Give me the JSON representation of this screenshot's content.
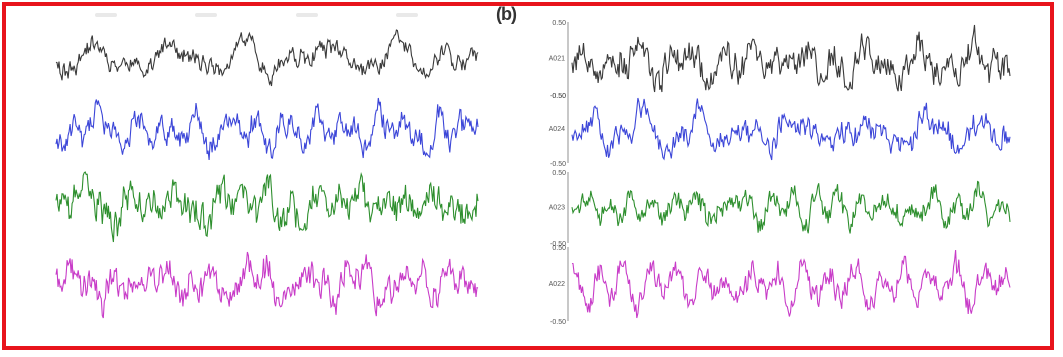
{
  "panel_label": "(b)",
  "chart_data": [
    {
      "type": "line",
      "panel": "left",
      "title": "",
      "axes": "none",
      "grid": false,
      "series": [
        {
          "color": "#3a3a3a",
          "seed": 11,
          "smooth": 0.55,
          "amp": 1.0
        },
        {
          "color": "#3c46d8",
          "seed": 23,
          "smooth": 0.5,
          "amp": 1.0
        },
        {
          "color": "#2e8f2e",
          "seed": 37,
          "smooth": 0.45,
          "amp": 1.0
        },
        {
          "color": "#c83cc8",
          "seed": 41,
          "smooth": 0.35,
          "amp": 1.0
        }
      ]
    },
    {
      "type": "line",
      "panel": "right",
      "title": "",
      "grid": false,
      "ylim": [
        -0.5,
        0.5
      ],
      "series": [
        {
          "name": "A021",
          "color": "#3a3a3a",
          "seed": 53,
          "smooth": 0.45,
          "amp": 1.0,
          "ytick_top": "0.50",
          "ytick_bottom": "-0.50"
        },
        {
          "name": "A024",
          "color": "#3c46d8",
          "seed": 61,
          "smooth": 0.45,
          "amp": 1.0,
          "ytick_top": "0.50",
          "ytick_bottom": "-0.50"
        },
        {
          "name": "A023",
          "color": "#2e8f2e",
          "seed": 73,
          "smooth": 0.3,
          "amp": 0.8,
          "ytick_top": "0.50",
          "ytick_bottom": "-0.50"
        },
        {
          "name": "A022",
          "color": "#c83cc8",
          "seed": 89,
          "smooth": 0.35,
          "amp": 1.0,
          "ytick_top": "0.50",
          "ytick_bottom": "-0.50"
        }
      ]
    }
  ]
}
